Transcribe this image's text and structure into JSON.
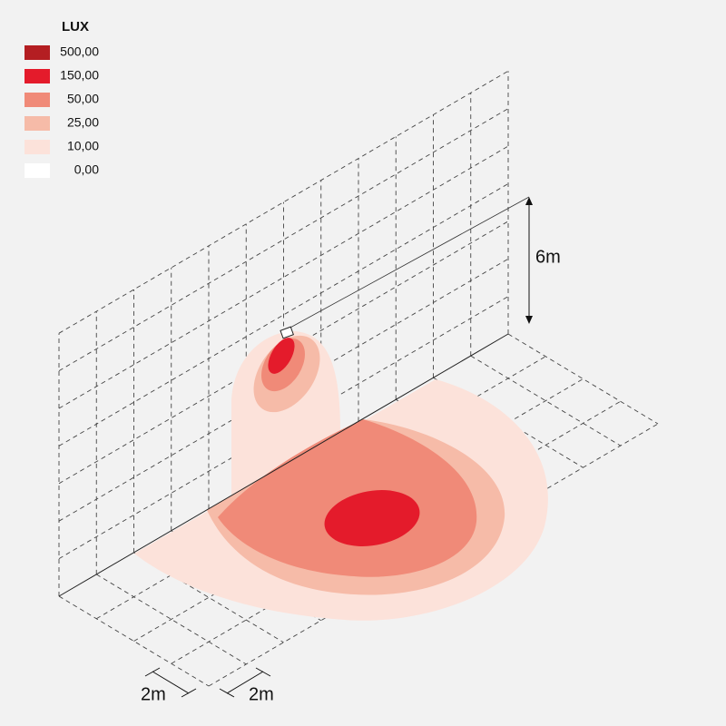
{
  "legend": {
    "title": "LUX",
    "items": [
      {
        "label": "500,00",
        "color": "#b41e22"
      },
      {
        "label": "150,00",
        "color": "#e41b2b"
      },
      {
        "label": "50,00",
        "color": "#f08a78"
      },
      {
        "label": "25,00",
        "color": "#f6bba8"
      },
      {
        "label": "10,00",
        "color": "#fce2da"
      },
      {
        "label": "0,00",
        "color": "#ffffff"
      }
    ]
  },
  "dimensions": {
    "height": "6m",
    "grid_x": "2m",
    "grid_y": "2m"
  }
}
